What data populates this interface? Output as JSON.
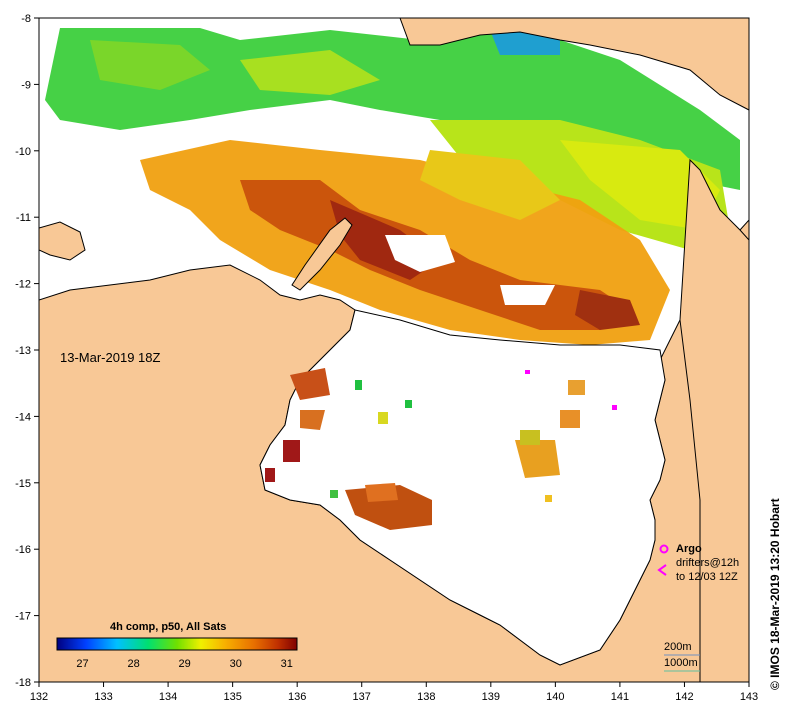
{
  "map": {
    "timestamp": "13-Mar-2019 18Z",
    "lon_ticks": [
      "132",
      "133",
      "134",
      "135",
      "136",
      "137",
      "138",
      "139",
      "140",
      "141",
      "142",
      "143"
    ],
    "lat_ticks": [
      "-8",
      "-9",
      "-10",
      "-11",
      "-12",
      "-13",
      "-14",
      "-15",
      "-16",
      "-17",
      "-18"
    ],
    "lon_range": [
      132,
      143
    ],
    "lat_range": [
      -18,
      -8
    ],
    "land_color": "#f8c896",
    "no_data_color": "#ffffff"
  },
  "colorbar": {
    "title": "4h comp, p50, All Sats",
    "labels": [
      "27",
      "28",
      "29",
      "30",
      "31"
    ],
    "range": [
      26.5,
      31.2
    ],
    "colors": [
      "#000080",
      "#0040ff",
      "#00c0ff",
      "#00e070",
      "#70e000",
      "#f0f000",
      "#f8b000",
      "#e87000",
      "#c03000",
      "#800000"
    ]
  },
  "legend": {
    "argo_label": "Argo",
    "drifters_line1": "drifters@12h",
    "drifters_line2": "to 12/03 12Z",
    "contour_200": "200m",
    "contour_1000": "1000m",
    "argo_color": "#ff00ff",
    "drifter_color": "#ff00ff"
  },
  "credit": "© IMOS 18-Mar-2019 13:20 Hobart"
}
